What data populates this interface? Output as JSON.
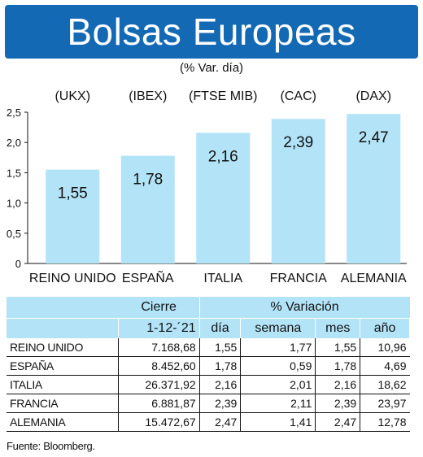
{
  "title": "Bolsas Europeas",
  "subtitle": "(% Var. día)",
  "colors": {
    "title_bg": "#1469b4",
    "bar": "#b3e3f7",
    "header_bg": "#b3e3f7"
  },
  "chart_data": {
    "type": "bar",
    "categories": [
      "REINO UNIDO",
      "ESPAÑA",
      "ITALIA",
      "FRANCIA",
      "ALEMANIA"
    ],
    "indices": [
      "(UKX)",
      "(IBEX)",
      "(FTSE MIB)",
      "(CAC)",
      "(DAX)"
    ],
    "values": [
      1.55,
      1.78,
      2.16,
      2.39,
      2.47
    ],
    "value_labels": [
      "1,55",
      "1,78",
      "2,16",
      "2,39",
      "2,47"
    ],
    "ylim": [
      0,
      2.5
    ],
    "yticks": [
      "0",
      "0,5",
      "1,0",
      "1,5",
      "2,0",
      "2,5"
    ],
    "ytick_values": [
      0,
      0.5,
      1.0,
      1.5,
      2.0,
      2.5
    ],
    "grid": false
  },
  "table": {
    "header_cierre": "Cierre",
    "header_variacion": "% Variación",
    "date": "1-12-´21",
    "cols": [
      "día",
      "semana",
      "mes",
      "año"
    ],
    "rows": [
      [
        "REINO UNIDO",
        "7.168,68",
        "1,55",
        "1,77",
        "1,55",
        "10,96"
      ],
      [
        "ESPAÑA",
        "8.452,60",
        "1,78",
        "0,59",
        "1,78",
        "4,69"
      ],
      [
        "ITALIA",
        "26.371,92",
        "2,16",
        "2,01",
        "2,16",
        "18,62"
      ],
      [
        "FRANCIA",
        "6.881,87",
        "2,39",
        "2,11",
        "2,39",
        "23,97"
      ],
      [
        "ALEMANIA",
        "15.472,67",
        "2,47",
        "1,41",
        "2,47",
        "12,78"
      ]
    ]
  },
  "source": "Fuente: Bloomberg."
}
